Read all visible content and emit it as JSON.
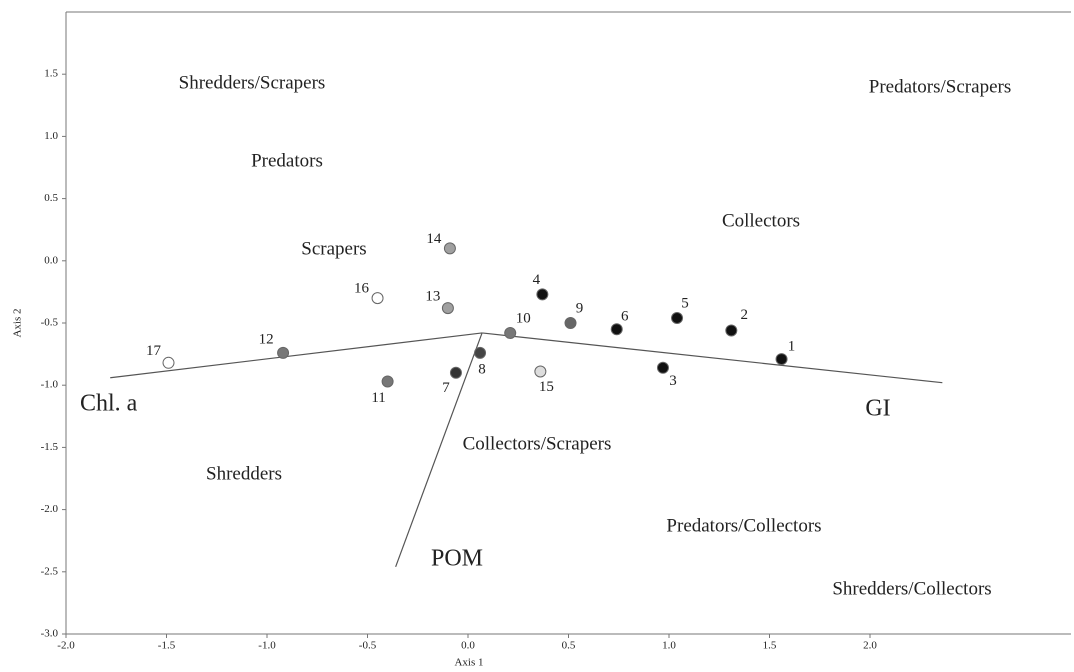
{
  "chart_data": {
    "type": "scatter",
    "x_label": "Axis 1",
    "y_label": "Axis 2",
    "xlim": [
      -2.0,
      3.0
    ],
    "ylim": [
      -3.0,
      2.0
    ],
    "xticks": [
      {
        "value": -2.0,
        "label": "-2.0"
      },
      {
        "value": -1.5,
        "label": "-1.5"
      },
      {
        "value": -1.0,
        "label": "-1.0"
      },
      {
        "value": -0.5,
        "label": "-0.5"
      },
      {
        "value": 0.0,
        "label": "0.0"
      },
      {
        "value": 0.5,
        "label": "0.5"
      },
      {
        "value": 1.0,
        "label": "1.0"
      },
      {
        "value": 1.5,
        "label": "1.5"
      },
      {
        "value": 2.0,
        "label": "2.0"
      }
    ],
    "yticks": [
      {
        "value": 1.5,
        "label": "1.5"
      },
      {
        "value": 1.0,
        "label": "1.0"
      },
      {
        "value": 0.5,
        "label": "0.5"
      },
      {
        "value": 0.0,
        "label": "0.0"
      },
      {
        "value": -0.5,
        "label": "-0.5"
      },
      {
        "value": -1.0,
        "label": "-1.0"
      },
      {
        "value": -1.5,
        "label": "-1.5"
      },
      {
        "value": -2.0,
        "label": "-2.0"
      },
      {
        "value": -2.5,
        "label": "-2.5"
      },
      {
        "value": -3.0,
        "label": "-3.0"
      }
    ],
    "series": [
      {
        "x": [
          1.56,
          1.31,
          0.97,
          0.37,
          1.04,
          0.74,
          -0.06,
          0.06,
          0.51,
          0.21,
          -0.4,
          -0.92,
          -0.1,
          -0.09,
          0.36,
          -0.45,
          -1.49
        ],
        "values": [
          -0.79,
          -0.56,
          -0.86,
          -0.27,
          -0.46,
          -0.55,
          -0.9,
          -0.74,
          -0.5,
          -0.58,
          -0.97,
          -0.74,
          -0.38,
          0.1,
          -0.89,
          -0.3,
          -0.82
        ],
        "point_labels": [
          "1",
          "2",
          "3",
          "4",
          "5",
          "6",
          "7",
          "8",
          "9",
          "10",
          "11",
          "12",
          "13",
          "14",
          "15",
          "16",
          "17"
        ],
        "colors": [
          "#111111",
          "#111111",
          "#111111",
          "#111111",
          "#111111",
          "#111111",
          "#333333",
          "#444444",
          "#666666",
          "#777777",
          "#777777",
          "#777777",
          "#a0a0a0",
          "#a0a0a0",
          "#dddddd",
          "#ffffff",
          "#ffffff"
        ]
      }
    ],
    "vectors": [
      {
        "name": "Chl. a",
        "x": [
          0.07,
          -1.78
        ],
        "y": [
          -0.58,
          -0.94
        ]
      },
      {
        "name": "GI",
        "x": [
          0.07,
          2.36
        ],
        "y": [
          -0.58,
          -0.98
        ]
      },
      {
        "name": "POM",
        "x": [
          0.07,
          -0.36
        ],
        "y": [
          -0.58,
          -2.46
        ]
      }
    ],
    "annotations": [
      "Shredders/Scrapers",
      "Predators/Scrapers",
      "Predators",
      "Collectors",
      "Scrapers",
      "Collectors/Scrapers",
      "Shredders",
      "Predators/Collectors",
      "Shredders/Collectors"
    ]
  }
}
